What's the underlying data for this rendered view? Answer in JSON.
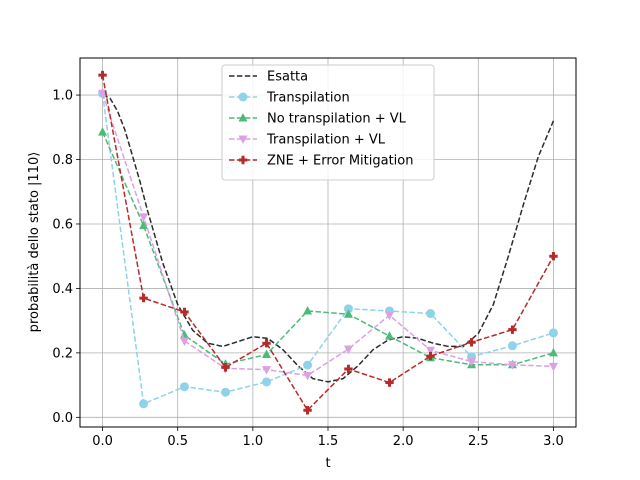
{
  "chart_data": {
    "type": "line",
    "xlabel": "t",
    "ylabel": "probabilità dello stato |110⟩",
    "xlim": [
      -0.15,
      3.15
    ],
    "ylim": [
      -0.03,
      1.115
    ],
    "xticks": [
      0.0,
      0.5,
      1.0,
      1.5,
      2.0,
      2.5,
      3.0
    ],
    "xtick_labels": [
      "0.0",
      "0.5",
      "1.0",
      "1.5",
      "2.0",
      "2.5",
      "3.0"
    ],
    "yticks": [
      0.0,
      0.2,
      0.4,
      0.6,
      0.8,
      1.0
    ],
    "ytick_labels": [
      "0.0",
      "0.2",
      "0.4",
      "0.6",
      "0.8",
      "1.0"
    ],
    "grid": true,
    "legend_position": "upper-center",
    "series": [
      {
        "name": "Esatta",
        "style": "dashed-line",
        "color": "#2b2b2b",
        "marker": "none",
        "x": [
          0.0,
          0.05,
          0.1,
          0.15,
          0.2,
          0.25,
          0.3,
          0.4,
          0.5,
          0.6,
          0.7,
          0.8,
          0.9,
          1.0,
          1.1,
          1.2,
          1.3,
          1.4,
          1.5,
          1.6,
          1.7,
          1.8,
          1.9,
          2.0,
          2.1,
          2.2,
          2.3,
          2.4,
          2.5,
          2.6,
          2.7,
          2.8,
          2.9,
          3.0
        ],
        "y": [
          1.0,
          0.99,
          0.95,
          0.89,
          0.81,
          0.73,
          0.64,
          0.48,
          0.35,
          0.27,
          0.23,
          0.22,
          0.235,
          0.25,
          0.245,
          0.21,
          0.16,
          0.12,
          0.11,
          0.12,
          0.16,
          0.21,
          0.24,
          0.25,
          0.245,
          0.23,
          0.22,
          0.22,
          0.26,
          0.35,
          0.5,
          0.66,
          0.81,
          0.92
        ]
      },
      {
        "name": "Transpilation",
        "style": "dashed-line",
        "color": "#8fd3eb",
        "marker": "circle",
        "x": [
          0.0,
          0.273,
          0.545,
          0.818,
          1.091,
          1.364,
          1.636,
          1.909,
          2.182,
          2.455,
          2.727,
          3.0
        ],
        "y": [
          1.005,
          0.042,
          0.095,
          0.078,
          0.11,
          0.162,
          0.337,
          0.33,
          0.322,
          0.188,
          0.222,
          0.262
        ]
      },
      {
        "name": "No transpilation + VL",
        "style": "dashed-line",
        "color": "#4dbb77",
        "marker": "triangle-up",
        "x": [
          0.0,
          0.273,
          0.545,
          0.818,
          1.091,
          1.364,
          1.636,
          1.909,
          2.182,
          2.455,
          2.727,
          3.0
        ],
        "y": [
          0.885,
          0.595,
          0.255,
          0.165,
          0.195,
          0.33,
          0.32,
          0.252,
          0.185,
          0.163,
          0.163,
          0.2
        ]
      },
      {
        "name": "Transpilation + VL",
        "style": "dashed-line",
        "color": "#dca0e5",
        "marker": "triangle-down",
        "x": [
          0.0,
          0.273,
          0.545,
          0.818,
          1.091,
          1.364,
          1.636,
          1.909,
          2.182,
          2.455,
          2.727,
          3.0
        ],
        "y": [
          1.005,
          0.622,
          0.237,
          0.152,
          0.148,
          0.13,
          0.212,
          0.317,
          0.208,
          0.173,
          0.163,
          0.158
        ]
      },
      {
        "name": "ZNE + Error Mitigation",
        "style": "dashed-line",
        "color": "#b52a2a",
        "marker": "plus",
        "x": [
          0.0,
          0.273,
          0.545,
          0.818,
          1.091,
          1.364,
          1.636,
          1.909,
          2.182,
          2.455,
          2.727,
          3.0
        ],
        "y": [
          1.062,
          0.37,
          0.327,
          0.155,
          0.23,
          0.022,
          0.15,
          0.108,
          0.19,
          0.233,
          0.272,
          0.5
        ]
      }
    ]
  }
}
